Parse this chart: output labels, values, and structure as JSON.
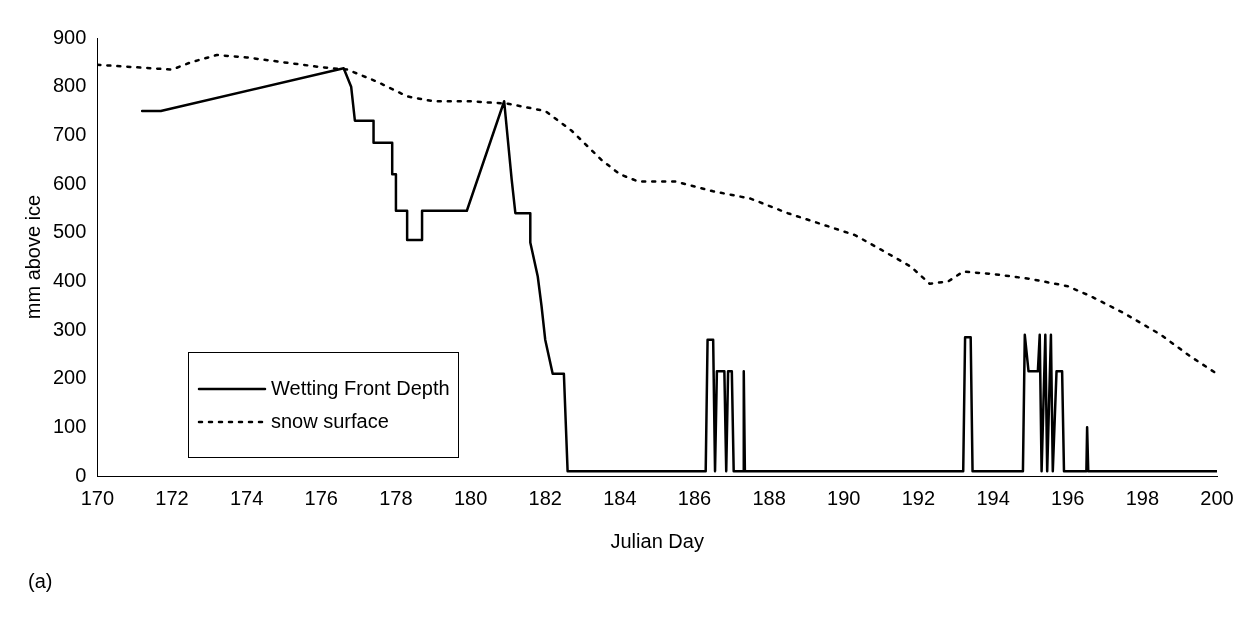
{
  "chart_data": {
    "type": "line",
    "xlabel": "Julian Day",
    "ylabel": "mm above ice",
    "xlim": [
      170,
      200
    ],
    "xticks": [
      170,
      172,
      174,
      176,
      178,
      180,
      182,
      184,
      186,
      188,
      190,
      192,
      194,
      196,
      198,
      200
    ],
    "ylim": [
      0,
      900
    ],
    "yticks": [
      0,
      100,
      200,
      300,
      400,
      500,
      600,
      700,
      800,
      900
    ],
    "grid": false,
    "legend": "bottom left",
    "marker": "none",
    "annotations": [
      "(a)"
    ],
    "series": [
      {
        "name": "Wetting Front Depth",
        "color": "#000000",
        "line_style": "solid",
        "x": [
          171.2,
          171.7,
          176.6,
          176.8,
          176.9,
          177.4,
          177.4,
          177.9,
          177.9,
          178.0,
          178.0,
          178.3,
          178.3,
          178.7,
          178.7,
          179.9,
          180.9,
          181.1,
          181.2,
          181.6,
          181.6,
          181.8,
          181.9,
          182.0,
          182.2,
          182.5,
          182.6,
          186.3,
          186.35,
          186.5,
          186.55,
          186.6,
          186.8,
          186.85,
          186.9,
          187.0,
          187.05,
          187.3,
          187.32,
          187.35,
          193.2,
          193.25,
          193.4,
          193.45,
          194.8,
          194.85,
          194.95,
          195.2,
          195.25,
          195.3,
          195.4,
          195.45,
          195.55,
          195.6,
          195.7,
          195.85,
          195.9,
          196.5,
          196.52,
          196.55,
          200
        ],
        "values": [
          750,
          750,
          838,
          800,
          730,
          730,
          685,
          685,
          620,
          620,
          545,
          545,
          485,
          485,
          545,
          545,
          770,
          610,
          540,
          540,
          480,
          410,
          350,
          280,
          210,
          210,
          10,
          10,
          280,
          280,
          10,
          215,
          215,
          10,
          215,
          215,
          10,
          10,
          215,
          10,
          10,
          285,
          285,
          10,
          10,
          290,
          215,
          215,
          290,
          10,
          290,
          10,
          290,
          10,
          215,
          215,
          10,
          10,
          100,
          10,
          10
        ]
      },
      {
        "name": "snow surface",
        "color": "#000000",
        "line_style": "dotted",
        "x": [
          170,
          171,
          172,
          172.5,
          173.2,
          174,
          175,
          176,
          176.7,
          177.5,
          178.3,
          179,
          180,
          181,
          182,
          182.7,
          183.5,
          184,
          184.5,
          185.5,
          186.5,
          187.5,
          188.5,
          189.5,
          190.3,
          191,
          191.8,
          192.3,
          192.8,
          193.2,
          194,
          195,
          196,
          196.6,
          197.5,
          198.5,
          199.3,
          200
        ],
        "values": [
          845,
          840,
          835,
          850,
          865,
          860,
          850,
          840,
          835,
          810,
          780,
          770,
          770,
          765,
          750,
          710,
          650,
          620,
          605,
          605,
          585,
          570,
          540,
          515,
          495,
          465,
          430,
          395,
          400,
          420,
          415,
          405,
          390,
          370,
          335,
          290,
          245,
          210
        ]
      }
    ]
  }
}
